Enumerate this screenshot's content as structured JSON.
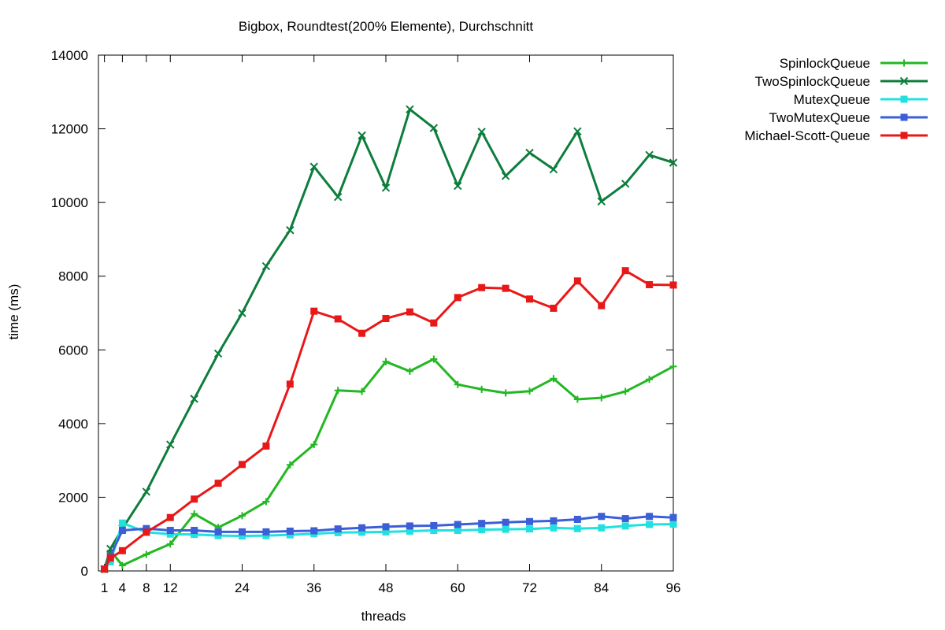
{
  "chart_data": {
    "type": "line",
    "title": "Bigbox, Roundtest(200% Elemente), Durchschnitt",
    "xlabel": "threads",
    "ylabel": "time (ms)",
    "xlim": [
      0,
      96
    ],
    "ylim": [
      0,
      14000
    ],
    "xticks": [
      1,
      4,
      8,
      12,
      24,
      36,
      48,
      60,
      72,
      84,
      96
    ],
    "yticks": [
      0,
      2000,
      4000,
      6000,
      8000,
      10000,
      12000,
      14000
    ],
    "grid": false,
    "legend_position": "outside-top-right",
    "x": [
      1,
      2,
      4,
      8,
      12,
      16,
      20,
      24,
      28,
      32,
      36,
      40,
      44,
      48,
      52,
      56,
      60,
      64,
      68,
      72,
      76,
      80,
      84,
      88,
      92,
      96
    ],
    "series": [
      {
        "name": "SpinlockQueue",
        "color": "#22b822",
        "marker": "plus",
        "values": [
          50,
          550,
          150,
          450,
          730,
          1550,
          1180,
          1500,
          1880,
          2880,
          3430,
          4900,
          4870,
          5680,
          5420,
          5750,
          5060,
          4930,
          4830,
          4880,
          5220,
          4660,
          4700,
          4870,
          5200,
          5550
        ]
      },
      {
        "name": "TwoSpinlockQueue",
        "color": "#0d7d3c",
        "marker": "x",
        "values": [
          50,
          600,
          1150,
          2150,
          3430,
          4670,
          5900,
          7000,
          8270,
          9250,
          10970,
          10150,
          11820,
          10400,
          12530,
          12020,
          10450,
          11920,
          10720,
          11350,
          10900,
          11930,
          10030,
          10510,
          11290,
          11080
        ]
      },
      {
        "name": "MutexQueue",
        "color": "#22e0e0",
        "marker": "square",
        "values": [
          50,
          250,
          1300,
          1050,
          1000,
          990,
          960,
          950,
          960,
          980,
          1010,
          1040,
          1050,
          1060,
          1080,
          1100,
          1100,
          1120,
          1130,
          1140,
          1170,
          1150,
          1170,
          1220,
          1260,
          1270
        ]
      },
      {
        "name": "TwoMutexQueue",
        "color": "#3c5fd8",
        "marker": "square",
        "values": [
          50,
          400,
          1100,
          1150,
          1100,
          1100,
          1060,
          1060,
          1060,
          1080,
          1090,
          1140,
          1170,
          1200,
          1220,
          1230,
          1260,
          1290,
          1320,
          1340,
          1360,
          1400,
          1480,
          1420,
          1480,
          1450
        ]
      },
      {
        "name": "Michael-Scott-Queue",
        "color": "#e81818",
        "marker": "square",
        "values": [
          50,
          350,
          550,
          1050,
          1450,
          1950,
          2380,
          2890,
          3390,
          5070,
          7050,
          6840,
          6450,
          6850,
          7030,
          6730,
          7420,
          7690,
          7670,
          7380,
          7130,
          7870,
          7200,
          8150,
          7770,
          7760
        ]
      }
    ]
  }
}
